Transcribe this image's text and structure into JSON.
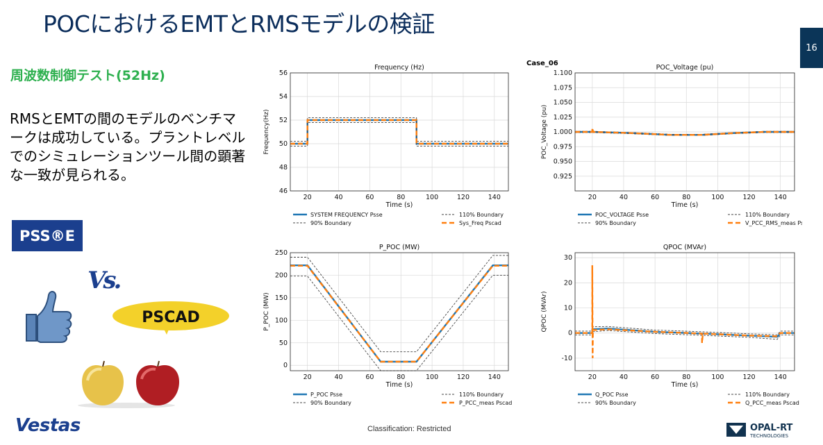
{
  "slide": {
    "title": "POCにおけるEMTとRMSモデルの検証",
    "page_number": "16",
    "subtitle": "周波数制御テスト(52Hz)",
    "body_text": "RMSとEMTの間のモデルのベンチマークは成功している。プラントレベルでのシミュレーションツール間の顕著な一致が見られる。",
    "case_label": "Case_06",
    "classification": "Classification: Restricted"
  },
  "logos": {
    "pss": "PSS®E",
    "vs": "Vs.",
    "pscad": "PSCAD",
    "vestas": "Vestas",
    "opal_top": "OPAL-RT",
    "opal_bottom": "TECHNOLOGIES"
  },
  "colors": {
    "title_blue": "#0b2d5b",
    "subtitle_green": "#2eb04f",
    "psse_blue": "#1f77b4",
    "pscad_orange": "#ff7f0e",
    "boundary": "#444444"
  },
  "chart_data": [
    {
      "type": "line",
      "title": "Frequency (Hz)",
      "xlabel": "Time (s)",
      "ylabel": "Frequency(Hz)",
      "xlim": [
        9,
        149
      ],
      "ylim": [
        46,
        56
      ],
      "xticks": [
        20,
        40,
        60,
        80,
        100,
        120,
        140
      ],
      "yticks": [
        46,
        48,
        50,
        52,
        54,
        56
      ],
      "grid": true,
      "legend": [
        "SYSTEM FREQUENCY Psse",
        "110% Boundary",
        "90% Boundary",
        "Sys_Freq Pscad"
      ],
      "series": [
        {
          "name": "SYSTEM FREQUENCY Psse",
          "style": "psse",
          "x": [
            9,
            20,
            20,
            90,
            90,
            149
          ],
          "y": [
            50,
            50,
            52,
            52,
            50,
            50
          ]
        },
        {
          "name": "110% Boundary",
          "style": "upper",
          "x": [
            9,
            20,
            20,
            90,
            90,
            149
          ],
          "y": [
            50.2,
            50.2,
            52.2,
            52.2,
            50.2,
            50.2
          ]
        },
        {
          "name": "90% Boundary",
          "style": "lower",
          "x": [
            9,
            20,
            20,
            90,
            90,
            149
          ],
          "y": [
            49.8,
            49.8,
            51.8,
            51.8,
            49.8,
            49.8
          ]
        },
        {
          "name": "Sys_Freq Pscad",
          "style": "pscad",
          "x": [
            9,
            20,
            20,
            90,
            90,
            149
          ],
          "y": [
            50,
            50,
            52,
            52,
            50,
            50
          ]
        }
      ]
    },
    {
      "type": "line",
      "title": "POC_Voltage (pu)",
      "xlabel": "Time (s)",
      "ylabel": "POC_Voltage (pu)",
      "xlim": [
        9,
        149
      ],
      "ylim": [
        0.9,
        1.1
      ],
      "xticks": [
        20,
        40,
        60,
        80,
        100,
        120,
        140
      ],
      "yticks": [
        0.925,
        0.95,
        0.975,
        1.0,
        1.025,
        1.05,
        1.075,
        1.1
      ],
      "grid": true,
      "legend": [
        "POC_VOLTAGE Psse",
        "110% Boundary",
        "90% Boundary",
        "V_PCC_RMS_meas Pscad"
      ],
      "series": [
        {
          "name": "POC_VOLTAGE Psse",
          "style": "psse",
          "x": [
            9,
            20,
            45,
            70,
            90,
            110,
            130,
            149
          ],
          "y": [
            1.0,
            1.0,
            0.998,
            0.995,
            0.995,
            0.998,
            1.0,
            1.0
          ]
        },
        {
          "name": "110% Boundary",
          "style": "upper",
          "x": [
            9,
            20,
            45,
            70,
            90,
            110,
            130,
            149
          ],
          "y": [
            1.001,
            1.001,
            0.999,
            0.996,
            0.996,
            0.999,
            1.001,
            1.001
          ]
        },
        {
          "name": "90% Boundary",
          "style": "lower",
          "x": [
            9,
            20,
            45,
            70,
            90,
            110,
            130,
            149
          ],
          "y": [
            0.999,
            0.999,
            0.997,
            0.994,
            0.994,
            0.997,
            0.999,
            0.999
          ]
        },
        {
          "name": "V_PCC_RMS_meas Pscad",
          "style": "pscad",
          "x": [
            9,
            20,
            20,
            20.5,
            45,
            70,
            90,
            110,
            130,
            149
          ],
          "y": [
            1.0,
            1.0,
            1.007,
            1.0,
            0.998,
            0.995,
            0.995,
            0.998,
            1.0,
            1.0
          ]
        }
      ]
    },
    {
      "type": "line",
      "title": "P_POC (MW)",
      "xlabel": "Time (s)",
      "ylabel": "P_POC (MW)",
      "xlim": [
        9,
        149
      ],
      "ylim": [
        -12,
        250
      ],
      "xticks": [
        20,
        40,
        60,
        80,
        100,
        120,
        140
      ],
      "yticks": [
        0,
        50,
        100,
        150,
        200,
        250
      ],
      "grid": true,
      "legend": [
        "P_POC Psse",
        "110% Boundary",
        "90% Boundary",
        "P_PCC_meas Pscad"
      ],
      "series": [
        {
          "name": "P_POC Psse",
          "style": "psse",
          "x": [
            9,
            20,
            67,
            90,
            139,
            149
          ],
          "y": [
            222,
            222,
            8,
            8,
            222,
            222
          ]
        },
        {
          "name": "110% Boundary",
          "style": "upper",
          "x": [
            9,
            20,
            67,
            90,
            139,
            149
          ],
          "y": [
            240,
            240,
            30,
            30,
            244,
            244
          ]
        },
        {
          "name": "90% Boundary",
          "style": "lower",
          "x": [
            9,
            20,
            67,
            90,
            139,
            149
          ],
          "y": [
            198,
            198,
            -12,
            -12,
            200,
            200
          ]
        },
        {
          "name": "P_PCC_meas Pscad",
          "style": "pscad",
          "x": [
            9,
            20,
            67,
            90,
            139,
            149
          ],
          "y": [
            221,
            221,
            8,
            8,
            221,
            221
          ]
        }
      ]
    },
    {
      "type": "line",
      "title": "QPOC (MVAr)",
      "xlabel": "Time (s)",
      "ylabel": "QPOC (MVAr)",
      "xlim": [
        9,
        149
      ],
      "ylim": [
        -15,
        32
      ],
      "xticks": [
        20,
        40,
        60,
        80,
        100,
        120,
        140
      ],
      "yticks": [
        -10,
        0,
        10,
        20,
        30
      ],
      "grid": true,
      "legend": [
        "Q_POC Psse",
        "110% Boundary",
        "90% Boundary",
        "Q_PCC_meas Pscad"
      ],
      "series": [
        {
          "name": "Q_POC Psse",
          "style": "psse",
          "x": [
            9,
            20,
            20,
            30,
            60,
            90,
            120,
            138,
            140,
            149
          ],
          "y": [
            0,
            0,
            1.5,
            1.8,
            0.5,
            -0.2,
            -1,
            -1.5,
            0,
            0
          ]
        },
        {
          "name": "110% Boundary",
          "style": "upper",
          "x": [
            9,
            20,
            20,
            30,
            60,
            90,
            120,
            138,
            140,
            149
          ],
          "y": [
            0.8,
            0.8,
            2.5,
            2.6,
            1.2,
            0.5,
            -0.3,
            -0.7,
            0.8,
            0.8
          ]
        },
        {
          "name": "90% Boundary",
          "style": "lower",
          "x": [
            9,
            20,
            20,
            30,
            60,
            90,
            120,
            138,
            140,
            149
          ],
          "y": [
            -0.8,
            -0.8,
            0.5,
            1.0,
            -0.2,
            -0.9,
            -1.7,
            -2.5,
            -0.8,
            -0.8
          ]
        },
        {
          "name": "Q_PCC_meas Pscad",
          "style": "pscad",
          "x": [
            9,
            20,
            20,
            20.2,
            20.4,
            21,
            30,
            60,
            90,
            90,
            90.5,
            120,
            138,
            140,
            149
          ],
          "y": [
            0,
            0,
            27,
            -10,
            1.5,
            1.2,
            1.5,
            0.5,
            -0.2,
            -4,
            -0.2,
            -1,
            -1.3,
            0,
            0
          ]
        }
      ]
    }
  ]
}
